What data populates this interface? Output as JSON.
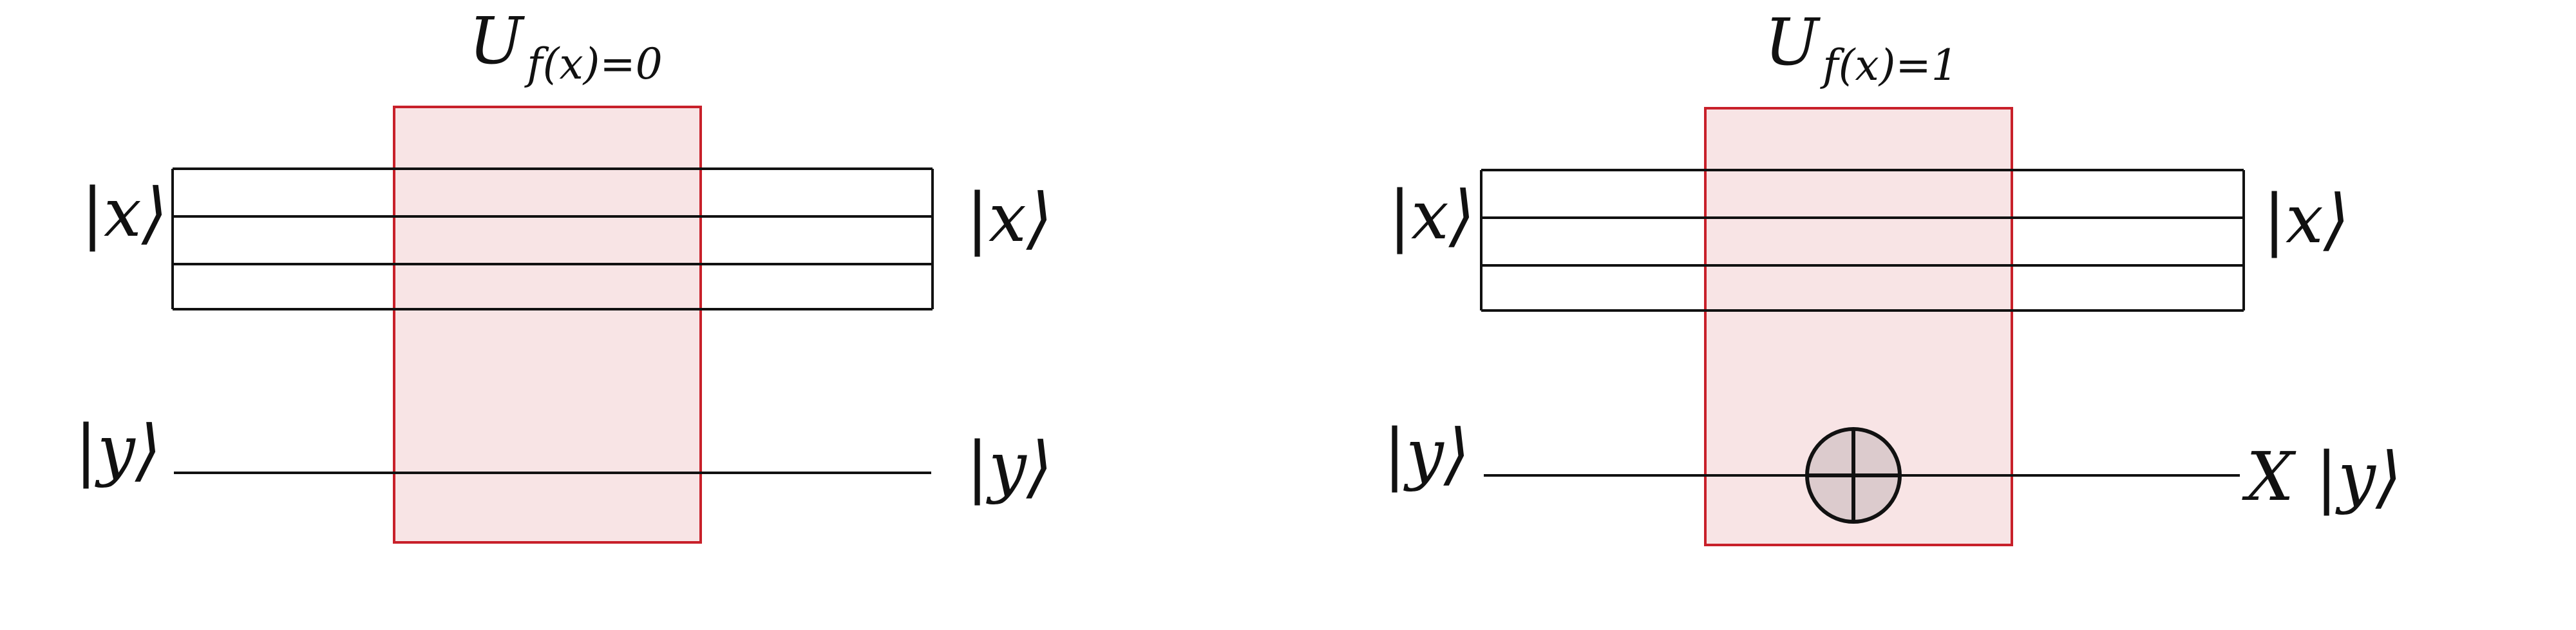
{
  "panels": [
    {
      "gate_title_main": "U",
      "gate_title_sub": "f(x)=0",
      "input_x": "|x⟩",
      "input_y": "|y⟩",
      "output_x": "|x⟩",
      "output_y": "|y⟩",
      "has_cnot_target": false
    },
    {
      "gate_title_main": "U",
      "gate_title_sub": "f(x)=1",
      "input_x": "|x⟩",
      "input_y": "|y⟩",
      "output_x": "|x⟩",
      "output_y": "X |y⟩",
      "has_cnot_target": true
    }
  ],
  "colors": {
    "gate_fill": "#f8e4e5",
    "gate_border": "#c8202a",
    "target_fill": "#dccbcd",
    "wire": "#111111"
  }
}
